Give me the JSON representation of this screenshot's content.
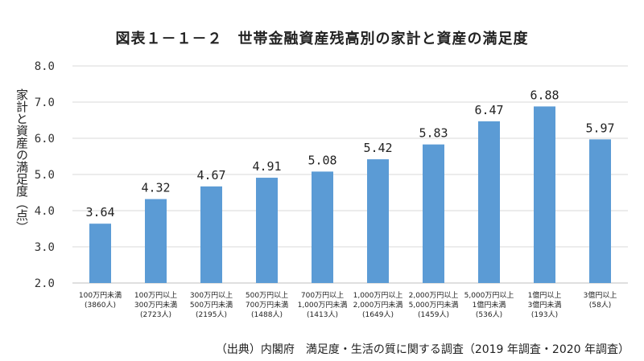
{
  "chart_data": {
    "type": "bar",
    "title": "図表１－１－２　世帯金融資産残高別の家計と資産の満足度",
    "ylabel": "家計と資産の満足度（点）",
    "xlabel": "",
    "ylim": [
      2.0,
      8.0
    ],
    "yticks": [
      "2.0",
      "3.0",
      "4.0",
      "5.0",
      "6.0",
      "7.0",
      "8.0"
    ],
    "grid": true,
    "bar_color": "#5b9bd5",
    "categories": [
      [
        "100万円未満",
        "(3860人)"
      ],
      [
        "100万円以上",
        "300万円未満",
        "(2723人)"
      ],
      [
        "300万円以上",
        "500万円未満",
        "(2195人)"
      ],
      [
        "500万円以上",
        "700万円未満",
        "(1488人)"
      ],
      [
        "700万円以上",
        "1,000万円未満",
        "(1413人)"
      ],
      [
        "1,000万円以上",
        "2,000万円未満",
        "(1649人)"
      ],
      [
        "2,000万円以上",
        "5,000万円未満",
        "(1459人)"
      ],
      [
        "5,000万円以上",
        "1億円未満",
        "(536人)"
      ],
      [
        "1億円以上",
        "3億円未満",
        "(193人)"
      ],
      [
        "3億円以上",
        "(58人)"
      ]
    ],
    "values": [
      3.64,
      4.32,
      4.67,
      4.91,
      5.08,
      5.42,
      5.83,
      6.47,
      6.88,
      5.97
    ],
    "value_labels": [
      "3.64",
      "4.32",
      "4.67",
      "4.91",
      "5.08",
      "5.42",
      "5.83",
      "6.47",
      "6.88",
      "5.97"
    ]
  },
  "source": "（出典）内閣府　満足度・生活の質に関する調査（2019 年調査・2020 年調査）"
}
